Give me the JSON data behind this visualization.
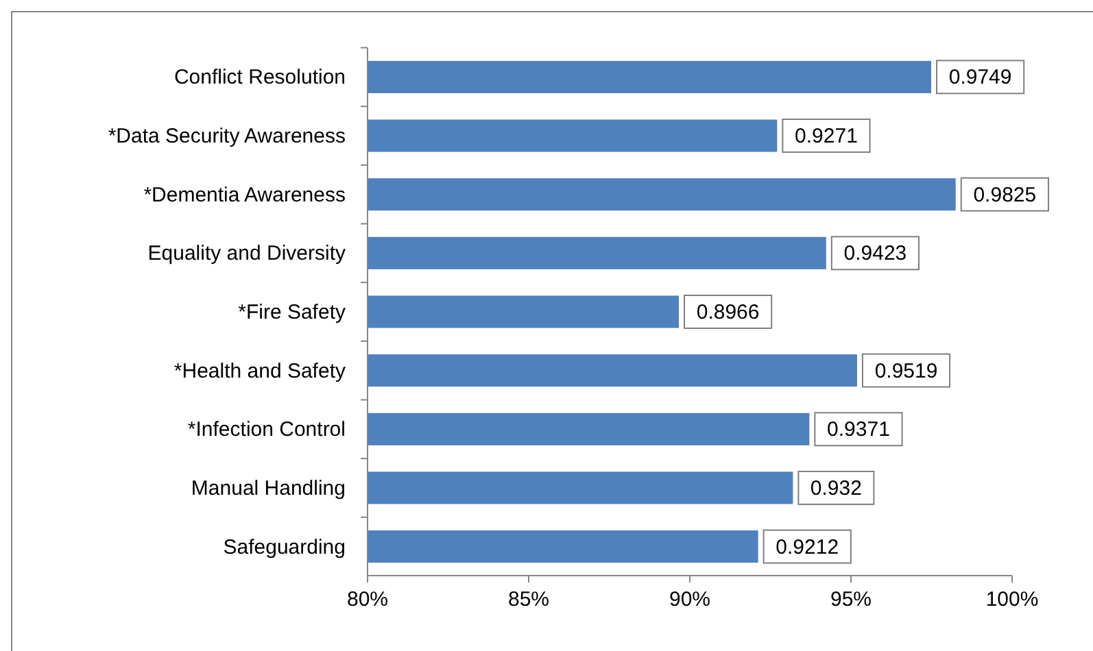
{
  "chart_data": {
    "type": "bar",
    "orientation": "horizontal",
    "categories": [
      "Conflict Resolution",
      "*Data Security Awareness",
      "*Dementia Awareness",
      "Equality and Diversity",
      "*Fire Safety",
      "*Health and Safety",
      "*Infection Control",
      "Manual Handling",
      "Safeguarding"
    ],
    "values": [
      0.9749,
      0.9271,
      0.9825,
      0.9423,
      0.8966,
      0.9519,
      0.9371,
      0.932,
      0.9212
    ],
    "color": "#4f81bd",
    "xlim": [
      0.8,
      1.0
    ],
    "xticks": [
      {
        "value": 0.8,
        "label": "80%"
      },
      {
        "value": 0.85,
        "label": "85%"
      },
      {
        "value": 0.9,
        "label": "90%"
      },
      {
        "value": 0.95,
        "label": "95%"
      },
      {
        "value": 1.0,
        "label": "100%"
      }
    ],
    "data_labels": true,
    "grid": false
  }
}
